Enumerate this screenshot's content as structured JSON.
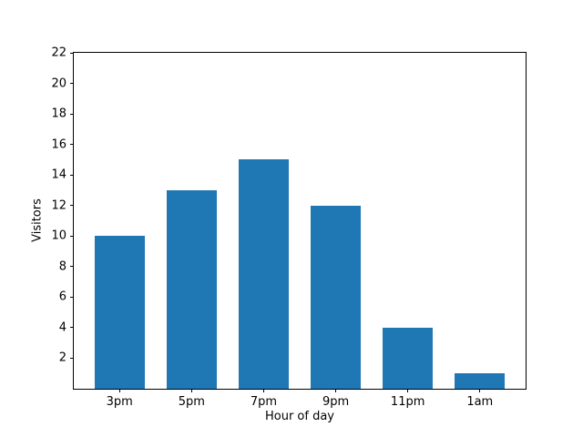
{
  "figure": {
    "background_color": "#ffffff",
    "frame_color": "#000000",
    "text_color": "#000000"
  },
  "chart_data": {
    "type": "bar",
    "xlabel": "Hour of day",
    "ylabel": "Visitors",
    "categories": [
      "3pm",
      "5pm",
      "7pm",
      "9pm",
      "11pm",
      "1am"
    ],
    "values": [
      10,
      13,
      15,
      12,
      4,
      1
    ],
    "bar_color": "#1f77b4",
    "bar_width": 0.7,
    "xlim": [
      -0.635,
      5.635
    ],
    "ylim": [
      0,
      22
    ],
    "yticks": [
      2,
      4,
      6,
      8,
      10,
      12,
      14,
      16,
      18,
      20,
      22
    ],
    "grid": false,
    "legend": "none",
    "title": ""
  }
}
